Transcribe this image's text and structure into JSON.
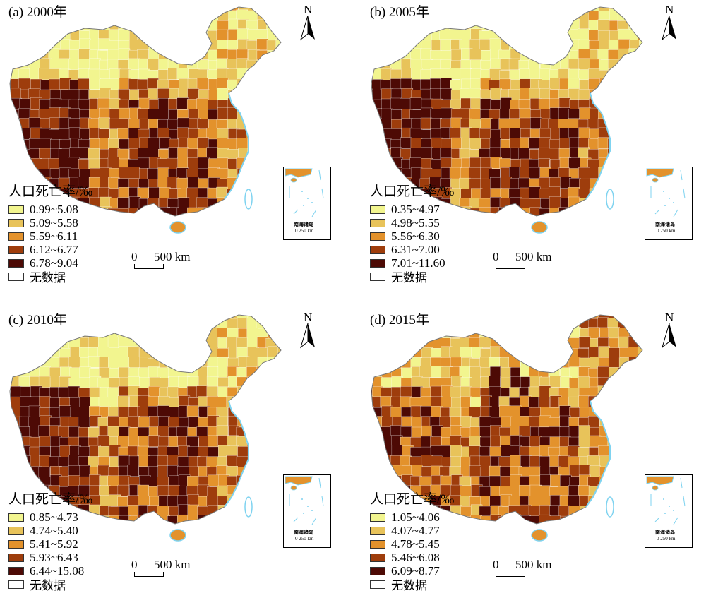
{
  "colors": {
    "class1": "#f2f58f",
    "class2": "#e8c35a",
    "class3": "#e3922c",
    "class4": "#9e3d0c",
    "class5": "#4d0a05",
    "nodata": "#ffffff",
    "water": "#7fd3f0"
  },
  "north_label": "N",
  "scale": {
    "zero": "0",
    "distance": "500 km"
  },
  "inset": {
    "label": "南海诸岛",
    "scale_text": "0 250 km"
  },
  "legend_title": "人口死亡率/‰",
  "nodata_label": "无数据",
  "panels": [
    {
      "title": "(a) 2000年",
      "classes": [
        "0.99~5.08",
        "5.09~5.58",
        "5.59~6.11",
        "6.12~6.77",
        "6.78~9.04"
      ]
    },
    {
      "title": "(b) 2005年",
      "classes": [
        "0.35~4.97",
        "4.98~5.55",
        "5.56~6.30",
        "6.31~7.00",
        "7.01~11.60"
      ]
    },
    {
      "title": "(c) 2010年",
      "classes": [
        "0.85~4.73",
        "4.74~5.40",
        "5.41~5.92",
        "5.93~6.43",
        "6.44~15.08"
      ]
    },
    {
      "title": "(d) 2015年",
      "classes": [
        "1.05~4.06",
        "4.07~4.77",
        "4.78~5.45",
        "5.46~6.08",
        "6.09~8.77"
      ]
    }
  ]
}
